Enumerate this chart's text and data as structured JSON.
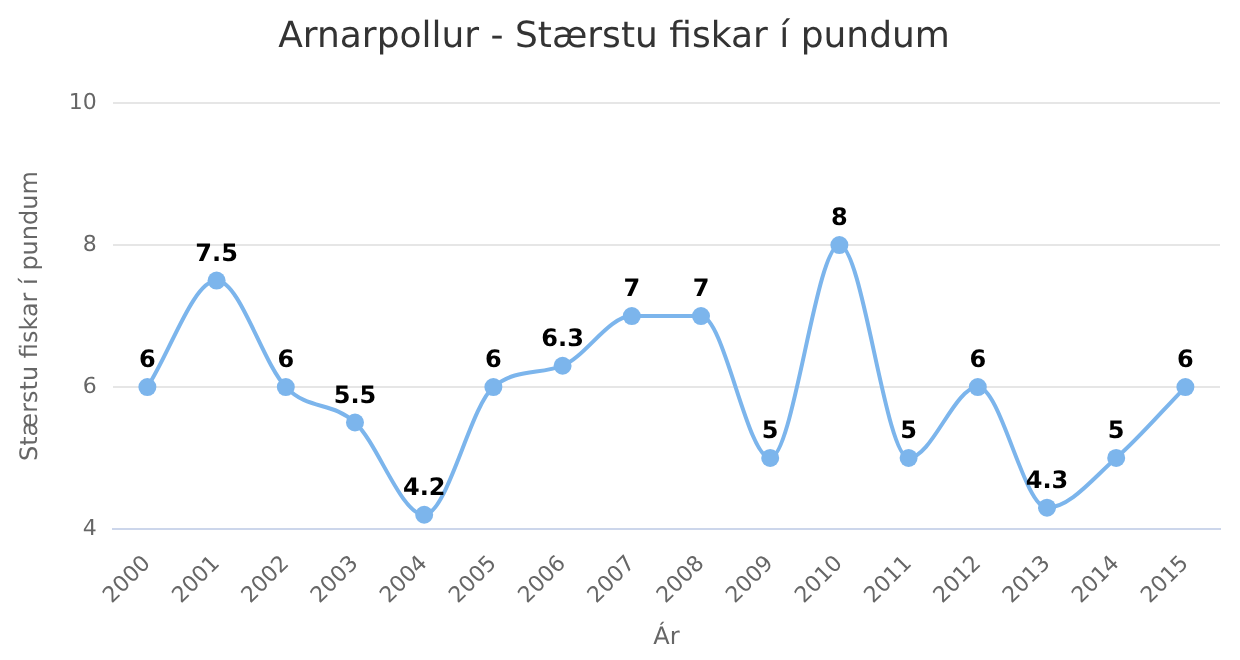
{
  "chart_data": {
    "type": "line",
    "title": "Arnarpollur - Stærstu fiskar í pundum",
    "xlabel": "Ár",
    "ylabel": "Stærstu fiskar í pundum",
    "categories": [
      "2000",
      "2001",
      "2002",
      "2003",
      "2004",
      "2005",
      "2006",
      "2007",
      "2008",
      "2009",
      "2010",
      "2011",
      "2012",
      "2013",
      "2014",
      "2015"
    ],
    "series": [
      {
        "color": "#7cb5ec",
        "values": [
          6,
          7.5,
          6,
          5.5,
          4.2,
          6,
          6.3,
          7,
          7,
          5,
          8,
          5,
          6,
          4.3,
          5,
          6
        ]
      }
    ],
    "ylim": [
      4,
      10
    ],
    "yticks": [
      4,
      6,
      8,
      10
    ],
    "grid": "y",
    "legend": false,
    "marker": "circle",
    "line_style": "solid",
    "data_labels": true
  }
}
